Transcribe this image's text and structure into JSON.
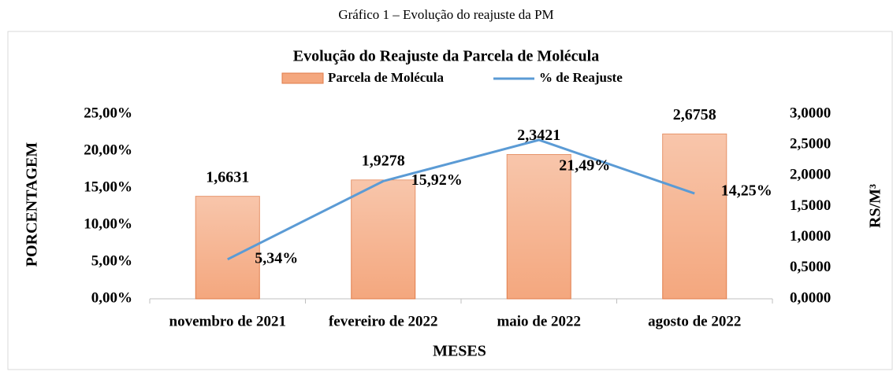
{
  "caption": "Gráfico 1 – Evolução do reajuste da PM",
  "chart_data": {
    "type": "bar_line",
    "title": "Evolução do Reajuste da Parcela de Molécula",
    "x_label": "MESES",
    "y_label": "PORCENTAGEM",
    "y2_label": "RS/M³",
    "categories": [
      "novembro de 2021",
      "fevereiro de 2022",
      "maio de 2022",
      "agosto de 2022"
    ],
    "series": [
      {
        "name": "Parcela de Molécula",
        "type": "bar",
        "axis": "y2",
        "color": "#f4a77e",
        "values": [
          1.6631,
          1.9278,
          2.3421,
          2.6758
        ],
        "value_labels": [
          "1,6631",
          "1,9278",
          "2,3421",
          "2,6758"
        ]
      },
      {
        "name": "% de Reajuste",
        "type": "line",
        "axis": "y",
        "color": "#5b9bd5",
        "values": [
          5.34,
          15.92,
          21.49,
          14.25
        ],
        "value_labels": [
          "5,34%",
          "15,92%",
          "21,49%",
          "14,25%"
        ]
      }
    ],
    "ylim": [
      0,
      25
    ],
    "yticks": [
      {
        "value": 0,
        "label": "0,00%"
      },
      {
        "value": 5,
        "label": "5,00%"
      },
      {
        "value": 10,
        "label": "10,00%"
      },
      {
        "value": 15,
        "label": "15,00%"
      },
      {
        "value": 20,
        "label": "20,00%"
      },
      {
        "value": 25,
        "label": "25,00%"
      }
    ],
    "y2lim": [
      0,
      3
    ],
    "y2ticks": [
      {
        "value": 0,
        "label": "0,0000"
      },
      {
        "value": 0.5,
        "label": "0,5000"
      },
      {
        "value": 1,
        "label": "1,0000"
      },
      {
        "value": 1.5,
        "label": "1,5000"
      },
      {
        "value": 2,
        "label": "2,0000"
      },
      {
        "value": 2.5,
        "label": "2,5000"
      },
      {
        "value": 3,
        "label": "3,0000"
      }
    ],
    "legend": "top"
  }
}
